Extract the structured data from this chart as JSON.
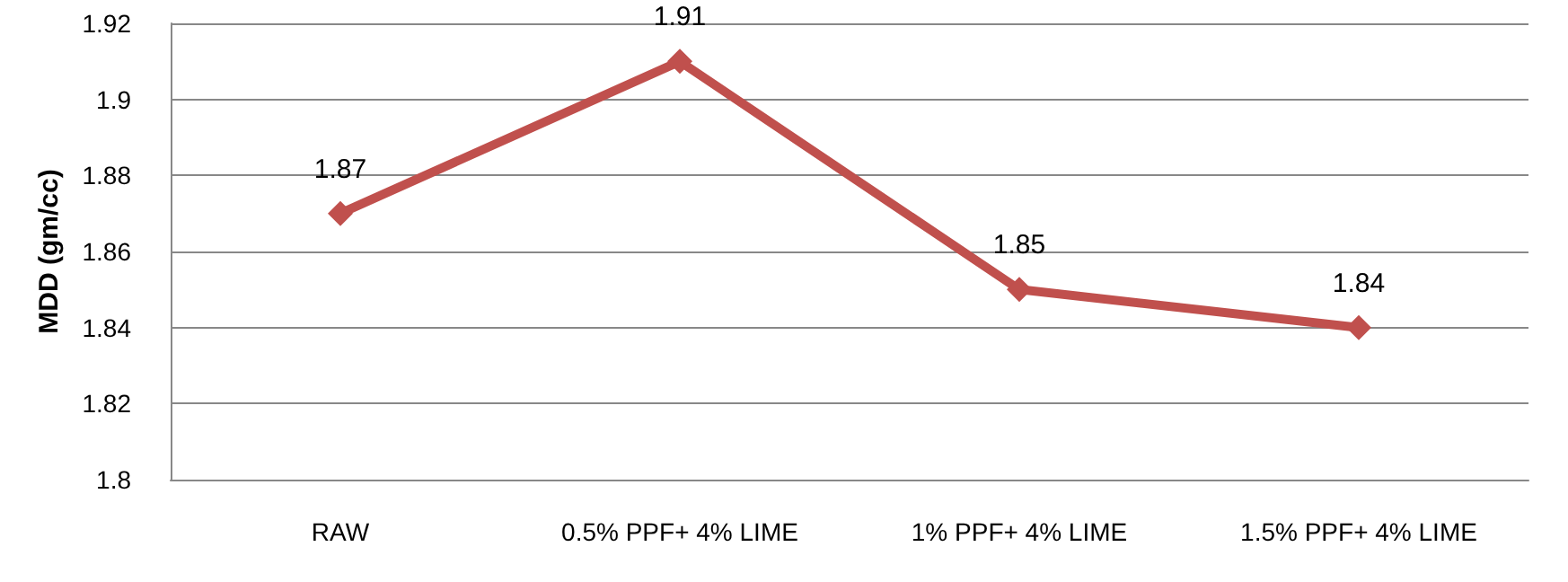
{
  "chart_data": {
    "type": "line",
    "ylabel": "MDD (gm/cc)",
    "categories": [
      "RAW",
      "0.5% PPF+ 4% LIME",
      "1% PPF+ 4% LIME",
      "1.5% PPF+ 4% LIME"
    ],
    "series": [
      {
        "color": "#c0504d",
        "values": [
          1.87,
          1.91,
          1.85,
          1.84
        ]
      }
    ],
    "ylim": [
      1.8,
      1.92
    ],
    "yticks": [
      1.8,
      1.82,
      1.84,
      1.86,
      1.88,
      1.9,
      1.92
    ],
    "grid": "y",
    "marker": "diamond",
    "line_style": "solid",
    "data_labels": true
  }
}
